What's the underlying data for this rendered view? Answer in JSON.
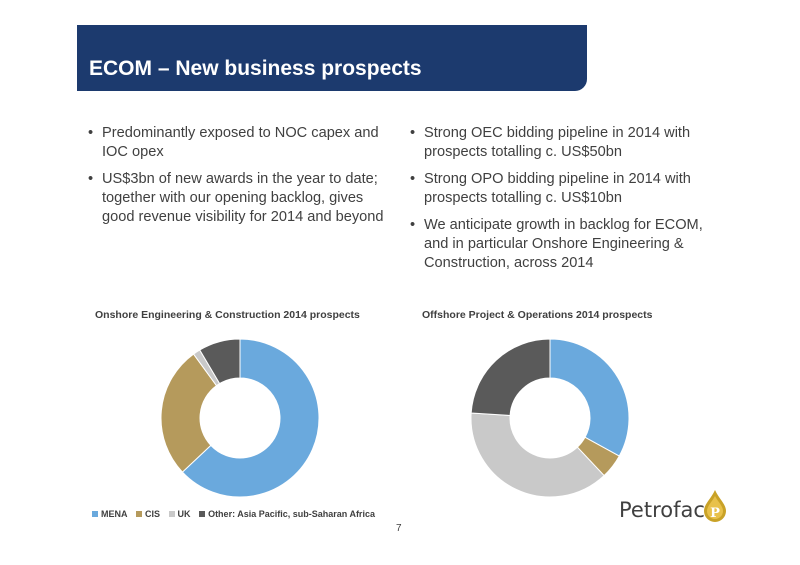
{
  "header": {
    "title": "ECOM – New business prospects"
  },
  "bullets_left": [
    "Predominantly exposed to NOC capex and IOC opex",
    "US$3bn of new awards in the year to date; together with our opening backlog, gives good revenue visibility for 2014 and beyond"
  ],
  "bullets_right": [
    "Strong OEC bidding pipeline in 2014 with prospects totalling c. US$50bn",
    "Strong OPO bidding pipeline in 2014 with prospects totalling c. US$10bn",
    "We anticipate growth in backlog for ECOM, and in particular Onshore Engineering & Construction, across 2014"
  ],
  "chart_data": [
    {
      "type": "pie",
      "title": "Onshore Engineering & Construction 2014 prospects",
      "categories": [
        "MENA",
        "CIS",
        "UK",
        "Other: Asia Pacific, sub-Saharan Africa"
      ],
      "values": [
        63,
        27,
        1.5,
        8.5
      ],
      "colors": [
        "#6aa9dd",
        "#b59a5c",
        "#c9c9c9",
        "#5a5a5a"
      ],
      "donut": true
    },
    {
      "type": "pie",
      "title": "Offshore Project & Operations 2014 prospects",
      "categories": [
        "MENA",
        "CIS",
        "UK",
        "Other: Asia Pacific, sub-Saharan Africa"
      ],
      "values": [
        33,
        5,
        38,
        24
      ],
      "colors": [
        "#6aa9dd",
        "#b59a5c",
        "#c9c9c9",
        "#5a5a5a"
      ],
      "donut": true
    }
  ],
  "legend": {
    "items": [
      {
        "label": "MENA",
        "color": "#6aa9dd"
      },
      {
        "label": "CIS",
        "color": "#b59a5c"
      },
      {
        "label": "UK",
        "color": "#c9c9c9"
      },
      {
        "label": "Other: Asia Pacific, sub-Saharan Africa",
        "color": "#5a5a5a"
      }
    ]
  },
  "footer": {
    "page_number": "7",
    "logo_text": "Petrofac"
  }
}
